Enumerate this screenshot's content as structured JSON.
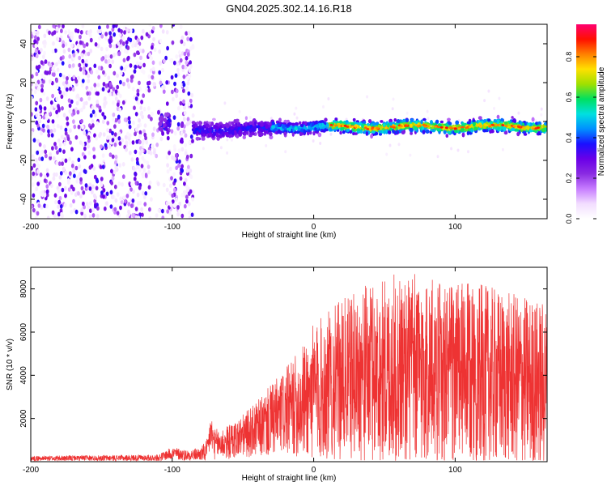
{
  "title": "GN04.2025.302.14.16.R18",
  "colors": {
    "snr_line": "#ee3333",
    "axis": "#000000",
    "colormap": [
      "#ffffff",
      "#f2ddff",
      "#c77dff",
      "#8a2be2",
      "#6a00e8",
      "#1a10ff",
      "#0090ff",
      "#00e0e0",
      "#00e060",
      "#a0e000",
      "#ffe000",
      "#ff8000",
      "#ff1000",
      "#ff0070"
    ]
  },
  "chart_data": [
    {
      "type": "heatmap",
      "title": "GN04.2025.302.14.16.R18",
      "xlabel": "Height of straight line (km)",
      "ylabel": "Frequency (Hz)",
      "xlim": [
        -200,
        165
      ],
      "ylim": [
        -50,
        50
      ],
      "xticks": [
        -200,
        -100,
        0,
        100
      ],
      "yticks": [
        -40,
        -20,
        0,
        20,
        40
      ],
      "colorbar": {
        "label": "Normalized spectral amplitude",
        "range": [
          0,
          0.96
        ],
        "ticks": [
          0.0,
          0.2,
          0.4,
          0.6,
          0.8
        ]
      },
      "features": {
        "noise_region_x": [
          -200,
          -85
        ],
        "band_center_hz_start": -3,
        "band_center_hz_end": -2.5,
        "band_width_hz": 8,
        "peak_amplitude_near_x": [
          10,
          160
        ]
      }
    },
    {
      "type": "line",
      "xlabel": "Height of straight line (km)",
      "ylabel": "SNR (10 * v/v)",
      "xlim": [
        -200,
        165
      ],
      "ylim": [
        0,
        9000
      ],
      "xticks": [
        -200,
        -100,
        0,
        100
      ],
      "yticks": [
        2000,
        4000,
        6000,
        8000
      ],
      "series": [
        {
          "name": "SNR",
          "envelope_x": [
            -200,
            -110,
            -100,
            -90,
            -80,
            -75,
            -73,
            -70,
            -60,
            -50,
            -40,
            -30,
            -20,
            -10,
            0,
            10,
            20,
            30,
            40,
            50,
            60,
            70,
            80,
            90,
            100,
            110,
            120,
            130,
            140,
            150,
            160,
            165
          ],
          "envelope_mean": [
            150,
            180,
            400,
            300,
            350,
            500,
            1400,
            800,
            900,
            1200,
            1500,
            1900,
            2300,
            2700,
            3200,
            3500,
            3800,
            4000,
            4100,
            4200,
            4300,
            4250,
            4200,
            4150,
            4100,
            4050,
            4000,
            3900,
            3800,
            3700,
            3600,
            3500
          ],
          "envelope_spread": [
            120,
            150,
            300,
            250,
            300,
            600,
            900,
            700,
            800,
            1000,
            1300,
            1700,
            2000,
            2500,
            3200,
            3500,
            3700,
            3900,
            4200,
            4300,
            4500,
            4500,
            4400,
            4300,
            4300,
            4200,
            4200,
            4100,
            4000,
            4000,
            3900,
            3900
          ]
        }
      ]
    }
  ]
}
